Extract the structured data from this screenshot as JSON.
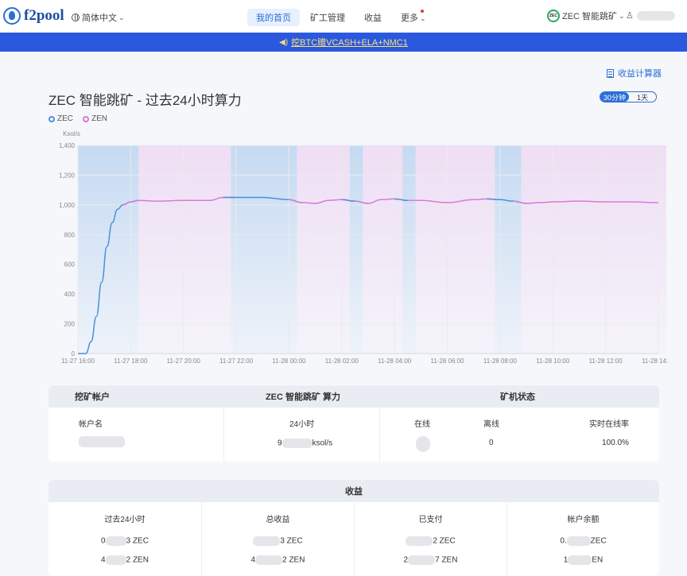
{
  "header": {
    "logo_text": "f2pool",
    "language": "简体中文",
    "nav": [
      "我的首页",
      "矿工管理",
      "收益",
      "更多"
    ],
    "active_nav": "我的首页",
    "miner_mode": "ZEC 智能跳矿",
    "coin_badge": "ZEC"
  },
  "banner": {
    "text": "挖BTC赠VCASH+ELA+NMC1"
  },
  "calculator": {
    "label": "收益计算器"
  },
  "chart_section": {
    "title": "ZEC 智能跳矿 - 过去24小时算力",
    "range_options": [
      "30分钟",
      "1天"
    ],
    "active_range": "30分钟"
  },
  "chart_data": {
    "type": "line",
    "ylabel": "Ksol/s",
    "ylim": [
      0,
      1400
    ],
    "yticks": [
      "0",
      "200",
      "400",
      "600",
      "800",
      "1,000",
      "1,200",
      "1,400"
    ],
    "xticks": [
      "11-27 16:00",
      "11-27 18:00",
      "11-27 20:00",
      "11-27 22:00",
      "11-28 00:00",
      "11-28 02:00",
      "11-28 04:00",
      "11-28 06:00",
      "11-28 08:00",
      "11-28 10:00",
      "11-28 12:00",
      "11-28 14:00"
    ],
    "legend": [
      "ZEC",
      "ZEN"
    ],
    "colors": {
      "ZEC": "#4a90d9",
      "ZEN": "#d97ad6"
    },
    "grid": true,
    "coin_bands": [
      {
        "coin": "ZEC",
        "from": 0.0,
        "to": 2.3
      },
      {
        "coin": "ZEN",
        "from": 2.3,
        "to": 5.8
      },
      {
        "coin": "ZEC",
        "from": 5.8,
        "to": 8.3
      },
      {
        "coin": "ZEN",
        "from": 8.3,
        "to": 10.3
      },
      {
        "coin": "ZEC",
        "from": 10.3,
        "to": 10.8
      },
      {
        "coin": "ZEN",
        "from": 10.8,
        "to": 12.3
      },
      {
        "coin": "ZEC",
        "from": 12.3,
        "to": 12.8
      },
      {
        "coin": "ZEN",
        "from": 12.8,
        "to": 15.8
      },
      {
        "coin": "ZEC",
        "from": 15.8,
        "to": 16.8
      },
      {
        "coin": "ZEN",
        "from": 16.8,
        "to": 22.3
      }
    ],
    "hours_from_start": [
      0,
      0.3,
      0.5,
      0.7,
      0.9,
      1.1,
      1.3,
      1.5,
      1.7,
      2.0,
      2.3,
      3.0,
      4.0,
      5.0,
      5.5,
      6.0,
      7.0,
      8.0,
      8.5,
      9.0,
      9.5,
      10.0,
      10.5,
      11.0,
      11.5,
      12.0,
      12.5,
      13.0,
      14.0,
      15.0,
      15.5,
      16.0,
      16.5,
      17.0,
      17.5,
      18.0,
      19.0,
      20.0,
      21.0,
      22.0
    ],
    "values": [
      0,
      0,
      80,
      250,
      480,
      720,
      880,
      970,
      1000,
      1020,
      1030,
      1025,
      1030,
      1030,
      1050,
      1050,
      1050,
      1035,
      1015,
      1010,
      1030,
      1035,
      1025,
      1010,
      1035,
      1040,
      1030,
      1030,
      1015,
      1035,
      1040,
      1035,
      1025,
      1010,
      1015,
      1020,
      1025,
      1020,
      1020,
      1015
    ]
  },
  "account_table": {
    "headers": [
      "挖矿帐户",
      "ZEC 智能跳矿 算力",
      "矿机状态"
    ],
    "account_label": "帐户名",
    "hashrate_label": "24小时",
    "hashrate_prefix": "9",
    "hashrate_suffix": "ksol/s",
    "online_label": "在线",
    "offline_label": "离线",
    "offline_value": "0",
    "rate_label": "实时在线率",
    "rate_value": "100.0%"
  },
  "earnings_table": {
    "title": "收益",
    "columns": [
      {
        "label": "过去24小时",
        "zec": "3 ZEC",
        "zec_prefix": "0",
        "zen": "2 ZEN",
        "zen_prefix": "4"
      },
      {
        "label": "总收益",
        "zec": "3 ZEC",
        "zec_prefix": "",
        "zen": "2 ZEN",
        "zen_prefix": "4"
      },
      {
        "label": "已支付",
        "zec": "2 ZEC",
        "zec_prefix": "",
        "zen": "7 ZEN",
        "zen_prefix": "2"
      },
      {
        "label": "帐户余额",
        "zec": "ZEC",
        "zec_prefix": "0.",
        "zen": "EN",
        "zen_prefix": "1"
      }
    ]
  }
}
